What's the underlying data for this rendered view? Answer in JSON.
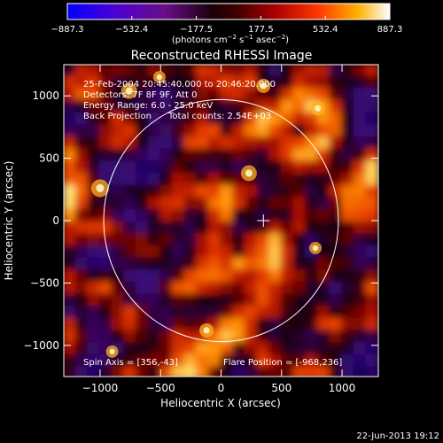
{
  "chart_data": {
    "type": "heatmap",
    "title": "Reconstructed RHESSI Image",
    "xlabel": "Heliocentric X (arcsec)",
    "ylabel": "Heliocentric Y (arcsec)",
    "xlim": [
      -1300,
      1300
    ],
    "ylim": [
      -1250,
      1250
    ],
    "x_ticks": [
      -1000,
      -500,
      0,
      500,
      1000
    ],
    "x_tick_labels": [
      "−1000",
      "−500",
      "0",
      "500",
      "1000"
    ],
    "y_ticks": [
      1000,
      500,
      0,
      -500,
      -1000
    ],
    "y_tick_labels": [
      "1000",
      "500",
      "0",
      "−500",
      "−1000"
    ],
    "colorbar": {
      "min": -887.3,
      "max": 887.3,
      "tick_labels": [
        "−887.3",
        "−532.4",
        "−177.5",
        "177.5",
        "532.4",
        "887.3"
      ],
      "units_prefix": "(photons cm",
      "units_exp1": "−2",
      "units_mid": " s",
      "units_exp2": "−1",
      "units_mid2": " asec",
      "units_exp3": "−2",
      "units_suffix": ")"
    },
    "solar_disk_center": [
      0,
      0
    ],
    "solar_disk_radius": 970,
    "flare_marker": [
      350,
      0
    ]
  },
  "annotations": {
    "time_range": "25-Feb-2004 20:45:40.000 to 20:46:20.000",
    "detectors": "Detectors: 7F 8F 9F, Att 0",
    "energy_range": "Energy Range: 6.0 - 25.0 keV",
    "method": "Back Projection",
    "total_counts": "Total counts: 2.54E+03",
    "spin_axis": "Spin Axis = [356,-43]",
    "flare_position": "Flare Position = [-968,236]"
  },
  "timestamp": "22-Jun-2013 19:12"
}
